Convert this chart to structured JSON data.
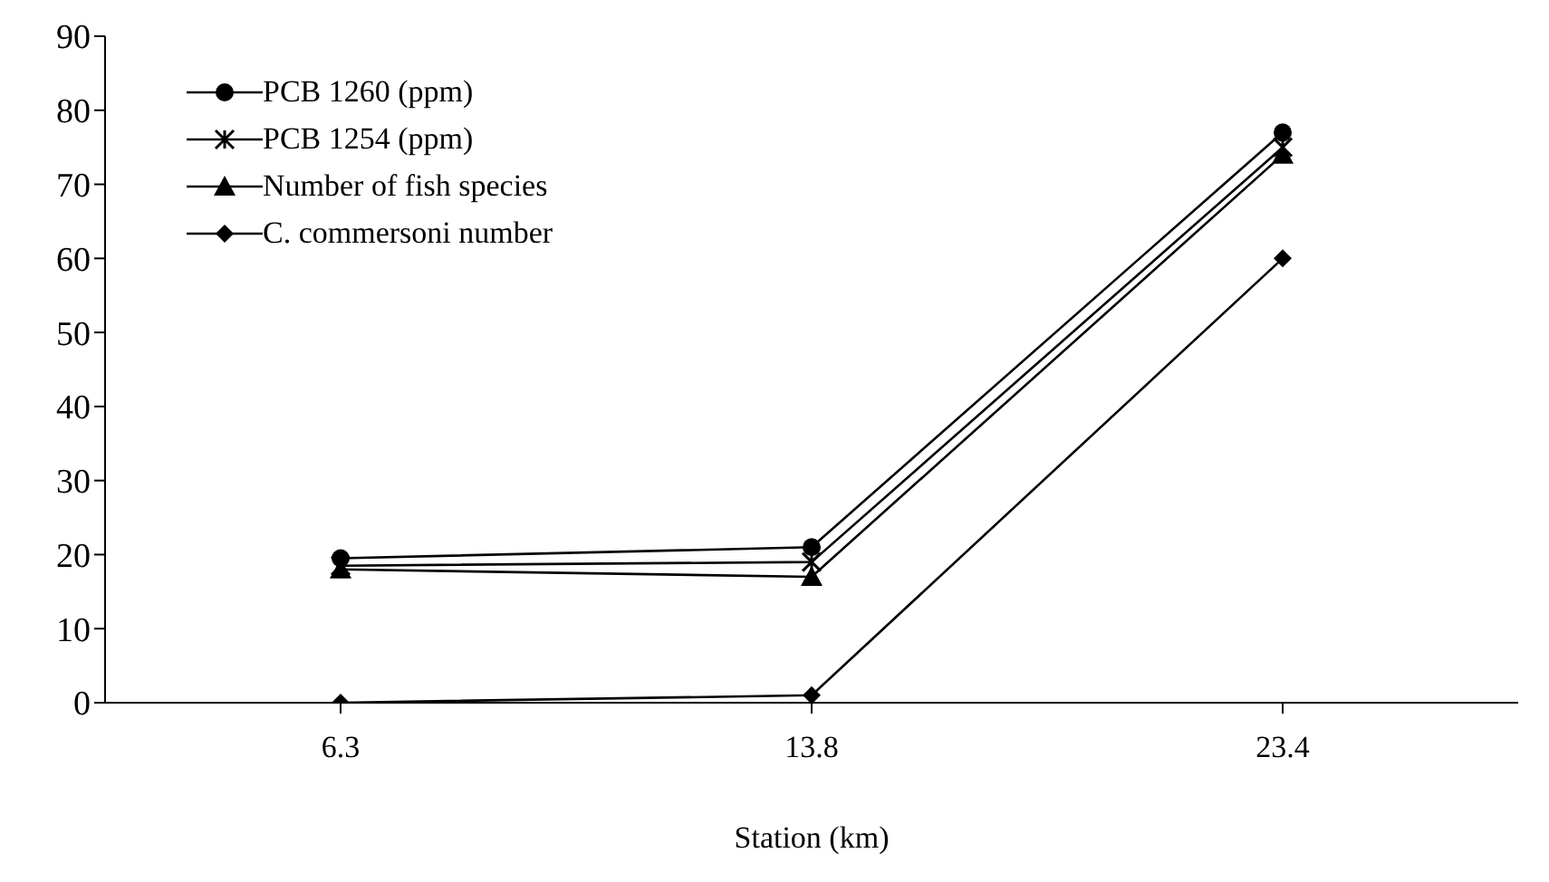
{
  "chart_data": {
    "type": "line",
    "xlabel": "Station (km)",
    "categories": [
      "6.3",
      "13.8",
      "23.4"
    ],
    "series": [
      {
        "name": "PCB 1260 (ppm)",
        "color": "#000000",
        "marker": "circle",
        "values": [
          19.5,
          21,
          77
        ]
      },
      {
        "name": "PCB 1254 (ppm)",
        "color": "#000000",
        "marker": "cross",
        "values": [
          18.5,
          19,
          75
        ]
      },
      {
        "name": "Number of fish species",
        "color": "#000000",
        "marker": "triangle",
        "values": [
          18,
          17,
          74
        ]
      },
      {
        "name": "C. commersoni number",
        "color": "#000000",
        "marker": "diamond",
        "values": [
          0,
          1,
          60
        ]
      }
    ],
    "ylim": [
      0,
      90
    ],
    "yticks": [
      0,
      10,
      20,
      30,
      40,
      50,
      60,
      70,
      80,
      90
    ],
    "grid": false,
    "legend": "top left",
    "line_style": "solid"
  }
}
